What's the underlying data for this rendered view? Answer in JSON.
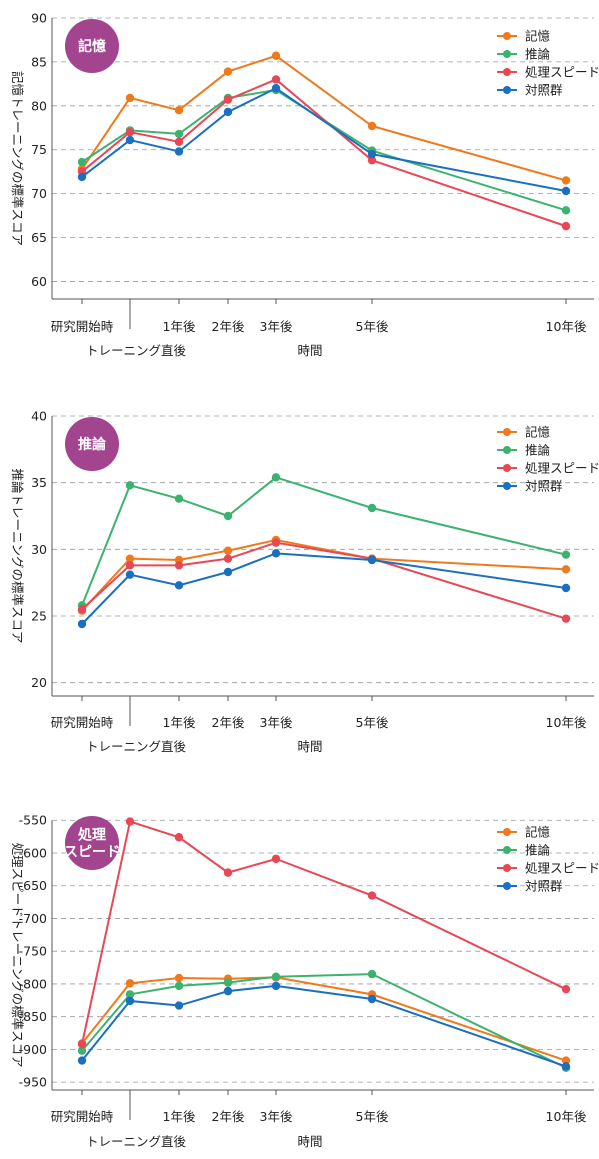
{
  "colors": {
    "memory": "#ee7a1d",
    "reasoning": "#3bb36e",
    "speed": "#e84855",
    "control": "#1b6fc2",
    "badge": "#a3448f",
    "grid": "#9a9a9a",
    "axis": "#555555"
  },
  "chart_data": [
    {
      "type": "line",
      "badge": "記憶",
      "ylabel": "記憶トレーニングの標準スコア",
      "xlabel": "時間",
      "x_labels": [
        "研究開始時",
        "トレーニング直後",
        "1年後",
        "2年後",
        "3年後",
        "5年後",
        "10年後"
      ],
      "ylim": [
        58,
        90
      ],
      "yticks": [
        60,
        65,
        70,
        75,
        80,
        85,
        90
      ],
      "grid": true,
      "legend": "top-right",
      "series": [
        {
          "name": "記憶",
          "key": "memory",
          "values": [
            72.8,
            80.9,
            79.5,
            83.9,
            85.7,
            77.7,
            71.5
          ]
        },
        {
          "name": "推論",
          "key": "reasoning",
          "values": [
            73.6,
            77.2,
            76.8,
            80.9,
            81.8,
            74.9,
            68.1
          ]
        },
        {
          "name": "処理スピード",
          "key": "speed",
          "values": [
            72.5,
            77.0,
            75.9,
            80.7,
            83.0,
            73.8,
            66.3
          ]
        },
        {
          "name": "対照群",
          "key": "control",
          "values": [
            71.9,
            76.1,
            74.8,
            79.3,
            82.0,
            74.5,
            70.3
          ]
        }
      ]
    },
    {
      "type": "line",
      "badge": "推論",
      "ylabel": "推論トレーニングの標準スコア",
      "xlabel": "時間",
      "x_labels": [
        "研究開始時",
        "トレーニング直後",
        "1年後",
        "2年後",
        "3年後",
        "5年後",
        "10年後"
      ],
      "ylim": [
        19,
        40
      ],
      "yticks": [
        20,
        25,
        30,
        35,
        40
      ],
      "grid": true,
      "legend": "top-right",
      "series": [
        {
          "name": "記憶",
          "key": "memory",
          "values": [
            25.4,
            29.3,
            29.2,
            29.9,
            30.7,
            29.3,
            28.5
          ]
        },
        {
          "name": "推論",
          "key": "reasoning",
          "values": [
            25.8,
            34.8,
            33.8,
            32.5,
            35.4,
            33.1,
            29.6
          ]
        },
        {
          "name": "処理スピード",
          "key": "speed",
          "values": [
            25.5,
            28.8,
            28.8,
            29.3,
            30.5,
            29.3,
            24.8
          ]
        },
        {
          "name": "対照群",
          "key": "control",
          "values": [
            24.4,
            28.1,
            27.3,
            28.3,
            29.7,
            29.2,
            27.1
          ]
        }
      ]
    },
    {
      "type": "line",
      "badge": "処理\nスピード",
      "ylabel": "処理スピードトレーニングの標準スコア",
      "xlabel": "時間",
      "x_labels": [
        "研究開始時",
        "トレーニング直後",
        "1年後",
        "2年後",
        "3年後",
        "5年後",
        "10年後"
      ],
      "ylim": [
        -962,
        -542
      ],
      "yticks": [
        -550,
        -600,
        -650,
        -700,
        -750,
        -800,
        -850,
        -900,
        -950
      ],
      "grid": true,
      "legend": "top-right",
      "series": [
        {
          "name": "記憶",
          "key": "memory",
          "values": [
            -891,
            -799,
            -791,
            -792,
            -790,
            -816,
            -917
          ]
        },
        {
          "name": "推論",
          "key": "reasoning",
          "values": [
            -902,
            -816,
            -803,
            -798,
            -789,
            -785,
            -928
          ]
        },
        {
          "name": "処理スピード",
          "key": "speed",
          "values": [
            -892,
            -552,
            -576,
            -630,
            -609,
            -665,
            -808
          ]
        },
        {
          "name": "対照群",
          "key": "control",
          "values": [
            -917,
            -826,
            -833,
            -811,
            -803,
            -823,
            -926
          ]
        }
      ]
    }
  ]
}
